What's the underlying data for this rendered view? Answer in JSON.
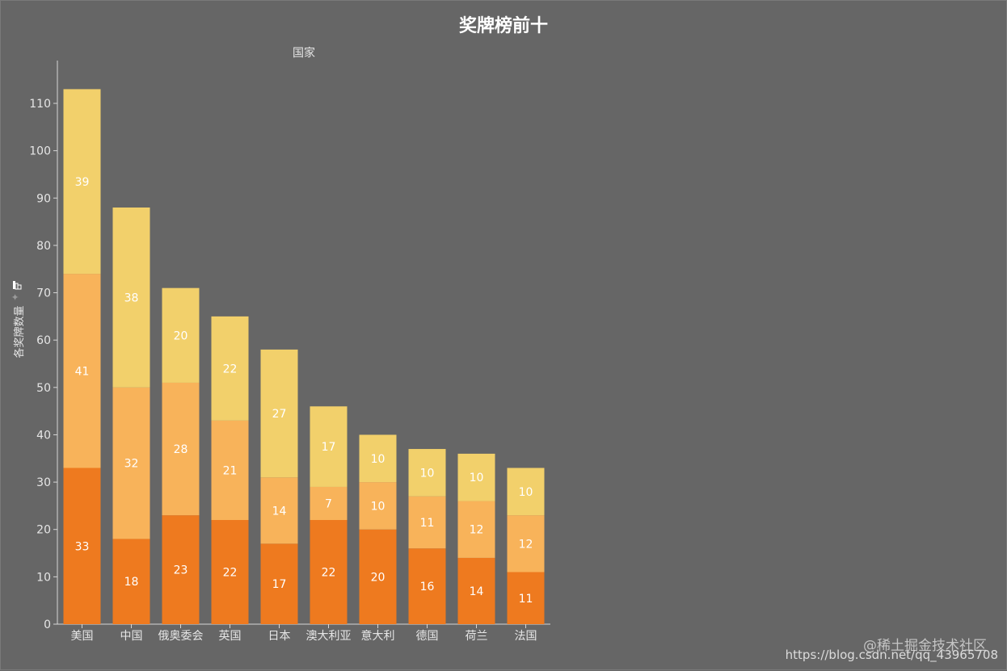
{
  "chart_data": {
    "type": "bar",
    "stacked": true,
    "title": "奖牌榜前十",
    "xlabel": "国家",
    "ylabel": "各奖牌数量",
    "categories": [
      "美国",
      "中国",
      "俄奥委会",
      "英国",
      "日本",
      "澳大利亚",
      "意大利",
      "德国",
      "荷兰",
      "法国"
    ],
    "series": [
      {
        "values": [
          33,
          18,
          23,
          22,
          17,
          22,
          20,
          16,
          14,
          11
        ],
        "color": "#EE7A1F"
      },
      {
        "values": [
          41,
          32,
          28,
          21,
          14,
          7,
          10,
          11,
          12,
          12
        ],
        "color": "#F8B35A"
      },
      {
        "values": [
          39,
          38,
          20,
          22,
          27,
          17,
          10,
          10,
          10,
          10
        ],
        "color": "#F2D06B"
      }
    ],
    "ylim": [
      0,
      118
    ],
    "yticks": [
      0,
      10,
      20,
      30,
      40,
      50,
      60,
      70,
      80,
      90,
      100,
      110
    ],
    "grid": false,
    "data_labels": true,
    "legend": "none"
  },
  "colors": {
    "background": "#666666",
    "axis": "#d6d6d6",
    "text": "#ffffff",
    "tick_text": "#e6e6e6"
  },
  "icons": {
    "ylabel_marker": "chart-glyph-icon"
  },
  "watermark": {
    "line1": "@稀土掘金技术社区",
    "line2": "https://blog.csdn.net/qq_43965708"
  }
}
